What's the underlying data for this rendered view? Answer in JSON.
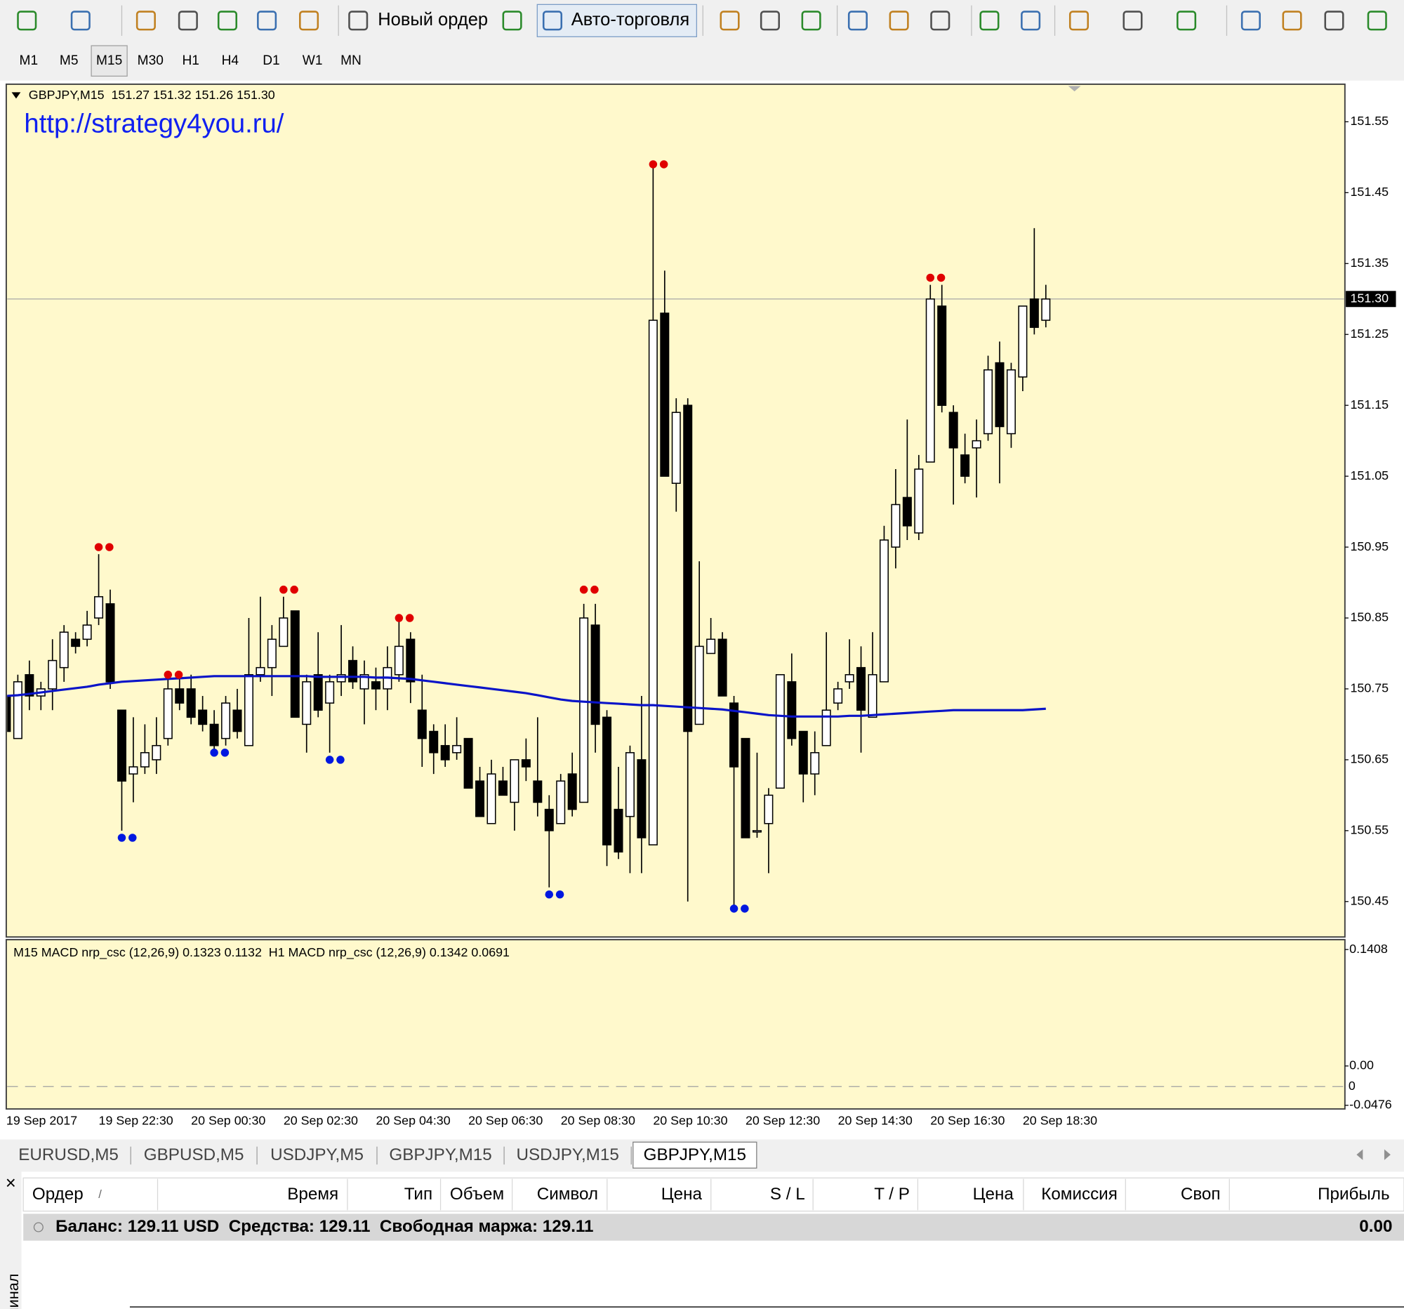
{
  "toolbar": {
    "new_order": "Новый ордер",
    "auto_trading": "Авто-торговля"
  },
  "timeframes": [
    "M1",
    "M5",
    "M15",
    "M30",
    "H1",
    "H4",
    "D1",
    "W1",
    "MN"
  ],
  "chart_data": {
    "type": "candlestick",
    "title": "GBPJPY,M15  151.27 151.32 151.26 151.30",
    "annotation": "http://strategy4you.ru/",
    "categories": [
      "19 Sep 2017",
      null,
      null,
      null,
      null,
      null,
      null,
      null,
      "19 Sep 22:30",
      null,
      null,
      null,
      null,
      null,
      null,
      null,
      "20 Sep 00:30",
      null,
      null,
      null,
      null,
      null,
      null,
      null,
      "20 Sep 02:30",
      null,
      null,
      null,
      null,
      null,
      null,
      null,
      "20 Sep 04:30",
      null,
      null,
      null,
      null,
      null,
      null,
      null,
      "20 Sep 06:30",
      null,
      null,
      null,
      null,
      null,
      null,
      null,
      "20 Sep 08:30",
      null,
      null,
      null,
      null,
      null,
      null,
      null,
      "20 Sep 10:30",
      null,
      null,
      null,
      null,
      null,
      null,
      null,
      "20 Sep 12:30",
      null,
      null,
      null,
      null,
      null,
      null,
      null,
      "20 Sep 14:30",
      null,
      null,
      null,
      null,
      null,
      null,
      null,
      "20 Sep 16:30",
      null,
      null,
      null,
      null,
      null,
      null,
      null,
      "20 Sep 18:30",
      null,
      null
    ],
    "open": [
      150.74,
      150.68,
      150.77,
      150.74,
      150.75,
      150.78,
      150.82,
      150.82,
      150.85,
      150.87,
      150.72,
      150.63,
      150.64,
      150.65,
      150.68,
      150.75,
      150.75,
      150.72,
      150.7,
      150.68,
      150.72,
      150.67,
      150.77,
      150.78,
      150.81,
      150.86,
      150.7,
      150.77,
      150.73,
      150.76,
      150.79,
      150.75,
      150.76,
      150.75,
      150.77,
      150.82,
      150.72,
      150.69,
      150.67,
      150.66,
      150.68,
      150.62,
      150.56,
      150.62,
      150.59,
      150.65,
      150.62,
      150.58,
      150.56,
      150.63,
      150.59,
      150.84,
      150.71,
      150.58,
      150.57,
      150.65,
      150.53,
      151.28,
      151.04,
      151.15,
      150.7,
      150.8,
      150.82,
      150.73,
      150.68,
      150.55,
      150.56,
      150.61,
      150.76,
      150.69,
      150.63,
      150.67,
      150.73,
      150.76,
      150.78,
      150.71,
      150.76,
      150.95,
      151.02,
      150.97,
      151.07,
      151.29,
      151.14,
      151.08,
      151.09,
      151.11,
      151.21,
      151.11,
      151.19,
      151.3,
      151.27
    ],
    "high": [
      150.75,
      150.77,
      150.79,
      150.76,
      150.82,
      150.84,
      150.83,
      150.86,
      150.94,
      150.89,
      150.72,
      150.71,
      150.7,
      150.71,
      150.77,
      150.77,
      150.77,
      150.74,
      150.72,
      150.74,
      150.75,
      150.85,
      150.88,
      150.84,
      150.88,
      150.86,
      150.77,
      150.83,
      150.77,
      150.84,
      150.81,
      150.79,
      150.78,
      150.81,
      150.85,
      150.83,
      150.77,
      150.7,
      150.7,
      150.71,
      150.68,
      150.64,
      150.65,
      150.64,
      150.65,
      150.68,
      150.71,
      150.6,
      150.63,
      150.66,
      150.87,
      150.87,
      150.72,
      150.64,
      150.67,
      150.74,
      151.49,
      151.34,
      151.16,
      151.16,
      150.93,
      150.85,
      150.83,
      150.74,
      150.68,
      150.66,
      150.61,
      150.77,
      150.8,
      150.69,
      150.69,
      150.83,
      150.76,
      150.82,
      150.81,
      150.83,
      150.98,
      151.06,
      151.13,
      151.08,
      151.32,
      151.32,
      151.15,
      151.11,
      151.13,
      151.22,
      151.24,
      151.21,
      151.29,
      151.4,
      151.32
    ],
    "low": [
      150.68,
      150.68,
      150.72,
      150.72,
      150.72,
      150.76,
      150.8,
      150.81,
      150.84,
      150.75,
      150.55,
      150.59,
      150.63,
      150.63,
      150.67,
      150.72,
      150.7,
      150.69,
      150.66,
      150.67,
      150.68,
      150.67,
      150.76,
      150.74,
      150.81,
      150.71,
      150.66,
      150.71,
      150.66,
      150.74,
      150.75,
      150.7,
      150.72,
      150.72,
      150.76,
      150.73,
      150.64,
      150.63,
      150.64,
      150.65,
      150.61,
      150.57,
      150.56,
      150.6,
      150.55,
      150.62,
      150.57,
      150.47,
      150.56,
      150.57,
      150.59,
      150.66,
      150.5,
      150.51,
      150.49,
      150.49,
      150.53,
      151.05,
      151.0,
      150.45,
      150.7,
      150.8,
      150.74,
      150.44,
      150.54,
      150.54,
      150.49,
      150.61,
      150.67,
      150.59,
      150.6,
      150.67,
      150.72,
      150.75,
      150.66,
      150.71,
      150.76,
      150.92,
      150.96,
      150.96,
      151.07,
      151.14,
      151.01,
      151.04,
      151.02,
      151.1,
      151.04,
      151.09,
      151.17,
      151.25,
      151.26
    ],
    "close": [
      150.69,
      150.76,
      150.74,
      150.75,
      150.79,
      150.83,
      150.81,
      150.84,
      150.88,
      150.76,
      150.62,
      150.64,
      150.66,
      150.67,
      150.75,
      150.73,
      150.71,
      150.7,
      150.67,
      150.73,
      150.69,
      150.77,
      150.78,
      150.82,
      150.85,
      150.71,
      150.76,
      150.72,
      150.76,
      150.77,
      150.76,
      150.77,
      150.75,
      150.78,
      150.81,
      150.76,
      150.68,
      150.66,
      150.65,
      150.67,
      150.61,
      150.57,
      150.63,
      150.6,
      150.65,
      150.64,
      150.59,
      150.55,
      150.62,
      150.58,
      150.85,
      150.7,
      150.53,
      150.52,
      150.66,
      150.54,
      151.27,
      151.05,
      151.14,
      150.69,
      150.81,
      150.82,
      150.74,
      150.64,
      150.54,
      150.55,
      150.6,
      150.77,
      150.68,
      150.63,
      150.66,
      150.72,
      150.75,
      150.77,
      150.72,
      150.77,
      150.96,
      151.01,
      150.98,
      151.06,
      151.3,
      151.15,
      151.09,
      151.05,
      151.1,
      151.2,
      151.12,
      151.2,
      151.29,
      151.26,
      151.3
    ],
    "up_color": "#ffffff",
    "down_color": "#000000",
    "ma": {
      "color": "#0a14c8",
      "values": [
        150.74,
        150.741,
        150.743,
        150.745,
        150.747,
        150.749,
        150.751,
        150.753,
        150.756,
        150.758,
        150.76,
        150.761,
        150.762,
        150.763,
        150.764,
        150.765,
        150.766,
        150.767,
        150.768,
        150.768,
        150.768,
        150.768,
        150.768,
        150.768,
        150.768,
        150.768,
        150.768,
        150.767,
        150.767,
        150.767,
        150.767,
        150.767,
        150.766,
        150.766,
        150.765,
        150.764,
        150.762,
        150.76,
        150.758,
        150.756,
        150.754,
        150.752,
        150.75,
        150.748,
        150.746,
        150.744,
        150.741,
        150.738,
        150.735,
        150.733,
        150.732,
        150.731,
        150.73,
        150.729,
        150.728,
        150.727,
        150.727,
        150.726,
        150.725,
        150.724,
        150.723,
        150.722,
        150.721,
        150.719,
        150.717,
        150.715,
        150.713,
        150.712,
        150.711,
        150.711,
        150.711,
        150.711,
        150.711,
        150.712,
        150.712,
        150.713,
        150.714,
        150.715,
        150.716,
        150.717,
        150.718,
        150.719,
        150.72,
        150.72,
        150.72,
        150.72,
        150.72,
        150.72,
        150.72,
        150.721,
        150.722
      ]
    },
    "fractals_up": {
      "color": "#e00000",
      "values": [
        null,
        null,
        null,
        null,
        null,
        null,
        null,
        null,
        150.95,
        null,
        null,
        null,
        null,
        null,
        150.77,
        null,
        null,
        null,
        null,
        null,
        null,
        null,
        null,
        null,
        150.89,
        null,
        null,
        null,
        null,
        null,
        null,
        null,
        null,
        null,
        150.85,
        null,
        null,
        null,
        null,
        null,
        null,
        null,
        null,
        null,
        null,
        null,
        null,
        null,
        null,
        null,
        150.89,
        null,
        null,
        null,
        null,
        null,
        151.49,
        null,
        null,
        null,
        null,
        null,
        null,
        null,
        null,
        null,
        null,
        null,
        null,
        null,
        null,
        null,
        null,
        null,
        null,
        null,
        null,
        null,
        null,
        null,
        151.33,
        null,
        null,
        null,
        null,
        null,
        null,
        null,
        null,
        null,
        null
      ]
    },
    "fractals_down": {
      "color": "#0018e0",
      "values": [
        null,
        null,
        null,
        null,
        null,
        null,
        null,
        null,
        null,
        null,
        150.54,
        null,
        null,
        null,
        null,
        null,
        null,
        null,
        150.66,
        null,
        null,
        null,
        null,
        null,
        null,
        null,
        null,
        null,
        150.65,
        null,
        null,
        null,
        null,
        null,
        null,
        null,
        null,
        null,
        null,
        null,
        null,
        null,
        null,
        null,
        null,
        null,
        null,
        150.46,
        null,
        null,
        null,
        null,
        null,
        null,
        null,
        null,
        null,
        null,
        null,
        null,
        null,
        null,
        null,
        150.44,
        null,
        null,
        null,
        null,
        null,
        null,
        null,
        null,
        null,
        null,
        null,
        null,
        null,
        null,
        null,
        null,
        null,
        null,
        null,
        null,
        null,
        null,
        null,
        null,
        null,
        null,
        null
      ]
    },
    "ylim": [
      150.4,
      151.603
    ],
    "yticks": [
      151.55,
      151.45,
      151.35,
      151.25,
      151.15,
      151.05,
      150.95,
      150.85,
      150.75,
      150.65,
      150.55,
      150.45
    ],
    "current_price": {
      "value": 151.3,
      "label": "151.30"
    },
    "background": "#fff9cc"
  },
  "indicator": {
    "title": "M15 MACD nrp_csc (12,26,9) 0.1323 0.1132  H1 MACD nrp_csc (12,26,9) 0.1342 0.0691",
    "ylim": [
      -0.052,
      0.1527
    ],
    "yticks": [
      0.1408,
      {
        "value": 0,
        "label": "0.00"
      },
      -0.0476
    ],
    "level_label": "0"
  },
  "tabs": [
    "EURUSD,M5",
    "GBPUSD,M5",
    "USDJPY,M5",
    "GBPJPY,M15",
    "USDJPY,M15",
    "GBPJPY,M15"
  ],
  "terminal": {
    "close": "×",
    "title": "Терминал",
    "columns": [
      "Ордер",
      "/",
      "Время",
      "Тип",
      "Объем",
      "Символ",
      "Цена",
      "S / L",
      "T / P",
      "Цена",
      "Комиссия",
      "Своп",
      "Прибыль"
    ],
    "balance": "Баланс: 129.11 USD  Средства: 129.11  Свободная маржа: 129.11",
    "profit": "0.00"
  }
}
